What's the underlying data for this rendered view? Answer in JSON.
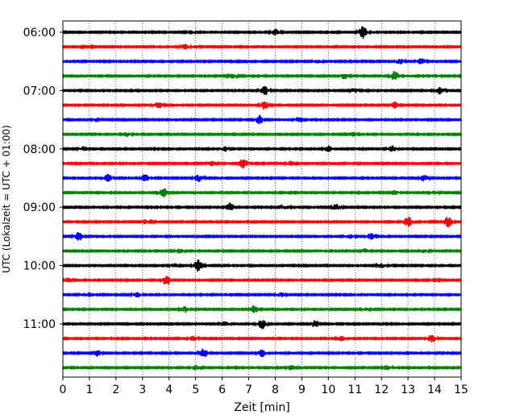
{
  "chart_data": {
    "type": "line",
    "title": "",
    "xlabel": "Zeit  [min]",
    "ylabel": "UTC (Lokalzeit = UTC + 01:00)",
    "xlim": [
      0,
      15
    ],
    "x_ticks": [
      "0",
      "1",
      "2",
      "3",
      "4",
      "5",
      "6",
      "7",
      "8",
      "9",
      "10",
      "11",
      "12",
      "13",
      "14",
      "15"
    ],
    "rows_start": "06:00",
    "row_interval_min": 15,
    "hour_labels": [
      "06:00",
      "07:00",
      "08:00",
      "09:00",
      "10:00",
      "11:00"
    ],
    "grid": {
      "vertical_dotted": true
    },
    "series_colors": [
      "#000000",
      "#ff0000",
      "#0000ff",
      "#008000"
    ],
    "rows": [
      {
        "time": "06:00",
        "events": [
          [
            8.0,
            0.4
          ],
          [
            11.3,
            0.9
          ],
          [
            4.8,
            0.2
          ]
        ]
      },
      {
        "time": "06:15",
        "events": [
          [
            4.6,
            0.3
          ],
          [
            5.0,
            0.2
          ],
          [
            0.9,
            0.2
          ]
        ]
      },
      {
        "time": "06:30",
        "events": [
          [
            12.7,
            0.4
          ],
          [
            13.5,
            0.4
          ],
          [
            9.6,
            0.2
          ]
        ]
      },
      {
        "time": "06:45",
        "events": [
          [
            12.5,
            0.7
          ],
          [
            6.4,
            0.3
          ],
          [
            10.6,
            0.4
          ]
        ]
      },
      {
        "time": "07:00",
        "events": [
          [
            7.6,
            0.6
          ],
          [
            14.2,
            0.5
          ],
          [
            11.0,
            0.3
          ]
        ]
      },
      {
        "time": "07:15",
        "events": [
          [
            3.6,
            0.4
          ],
          [
            7.6,
            0.6
          ],
          [
            12.5,
            0.4
          ]
        ]
      },
      {
        "time": "07:30",
        "events": [
          [
            7.4,
            0.6
          ],
          [
            1.3,
            0.3
          ],
          [
            8.9,
            0.4
          ]
        ]
      },
      {
        "time": "07:45",
        "events": [
          [
            2.4,
            0.3
          ],
          [
            10.9,
            0.3
          ]
        ]
      },
      {
        "time": "08:00",
        "events": [
          [
            0.8,
            0.3
          ],
          [
            6.1,
            0.3
          ],
          [
            10.0,
            0.4
          ],
          [
            12.4,
            0.4
          ]
        ]
      },
      {
        "time": "08:15",
        "events": [
          [
            6.8,
            0.7
          ],
          [
            8.6,
            0.3
          ],
          [
            5.6,
            0.3
          ]
        ]
      },
      {
        "time": "08:30",
        "events": [
          [
            1.7,
            0.5
          ],
          [
            3.1,
            0.5
          ],
          [
            5.1,
            0.5
          ],
          [
            13.6,
            0.4
          ]
        ]
      },
      {
        "time": "08:45",
        "events": [
          [
            3.8,
            0.6
          ],
          [
            12.5,
            0.3
          ],
          [
            14.0,
            0.2
          ]
        ]
      },
      {
        "time": "09:00",
        "events": [
          [
            6.3,
            0.6
          ],
          [
            10.3,
            0.4
          ],
          [
            8.4,
            0.2
          ]
        ]
      },
      {
        "time": "09:15",
        "events": [
          [
            3.3,
            0.3
          ],
          [
            13.0,
            0.7
          ],
          [
            14.5,
            0.7
          ]
        ]
      },
      {
        "time": "09:30",
        "events": [
          [
            0.6,
            0.6
          ],
          [
            11.6,
            0.4
          ],
          [
            10.8,
            0.3
          ]
        ]
      },
      {
        "time": "09:45",
        "events": [
          [
            4.4,
            0.3
          ],
          [
            11.4,
            0.3
          ],
          [
            13.6,
            0.2
          ]
        ]
      },
      {
        "time": "10:00",
        "events": [
          [
            5.1,
            0.8
          ],
          [
            4.2,
            0.3
          ],
          [
            12.0,
            0.3
          ]
        ]
      },
      {
        "time": "10:15",
        "events": [
          [
            3.9,
            0.7
          ],
          [
            0.2,
            0.4
          ],
          [
            14.0,
            0.2
          ]
        ]
      },
      {
        "time": "10:30",
        "events": [
          [
            2.8,
            0.3
          ],
          [
            8.2,
            0.3
          ],
          [
            0.8,
            0.2
          ]
        ]
      },
      {
        "time": "10:45",
        "events": [
          [
            7.2,
            0.5
          ],
          [
            4.6,
            0.4
          ],
          [
            11.4,
            0.2
          ]
        ]
      },
      {
        "time": "11:00",
        "events": [
          [
            7.5,
            0.7
          ],
          [
            6.1,
            0.4
          ],
          [
            9.5,
            0.5
          ]
        ]
      },
      {
        "time": "11:15",
        "events": [
          [
            13.9,
            0.5
          ],
          [
            4.9,
            0.3
          ],
          [
            10.5,
            0.3
          ]
        ]
      },
      {
        "time": "11:30",
        "events": [
          [
            5.3,
            0.6
          ],
          [
            7.5,
            0.5
          ],
          [
            1.3,
            0.4
          ]
        ]
      },
      {
        "time": "11:45",
        "events": [
          [
            12.2,
            0.3
          ],
          [
            5.0,
            0.3
          ],
          [
            8.6,
            0.3
          ]
        ]
      }
    ]
  }
}
